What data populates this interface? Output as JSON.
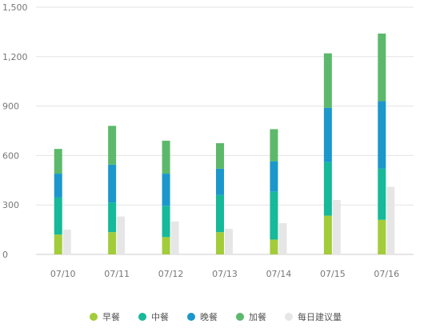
{
  "chart_data": {
    "type": "bar",
    "stacked": true,
    "categories": [
      "07/10",
      "07/11",
      "07/12",
      "07/13",
      "07/14",
      "07/15",
      "07/16"
    ],
    "series": [
      {
        "name": "早餐",
        "color": "#a2cc3a",
        "stack": "meals",
        "values": [
          120,
          135,
          105,
          135,
          90,
          235,
          210
        ]
      },
      {
        "name": "中餐",
        "color": "#16b99a",
        "stack": "meals",
        "values": [
          225,
          180,
          190,
          225,
          290,
          325,
          310
        ]
      },
      {
        "name": "晚餐",
        "color": "#1b97cc",
        "stack": "meals",
        "values": [
          145,
          230,
          195,
          160,
          185,
          330,
          410
        ]
      },
      {
        "name": "加餐",
        "color": "#5cb96b",
        "stack": "meals",
        "values": [
          150,
          235,
          200,
          155,
          195,
          330,
          410
        ]
      },
      {
        "name": "每日建议量",
        "color": "#e6e6e6",
        "stack": "suggested",
        "values": [
          150,
          230,
          200,
          155,
          190,
          330,
          410
        ]
      }
    ],
    "ylim": [
      0,
      1500
    ],
    "yticks": [
      0,
      300,
      600,
      900,
      1200,
      1500
    ],
    "ytick_labels": [
      "0",
      "300",
      "600",
      "900",
      "1,200",
      "1,500"
    ],
    "grid": true,
    "legend_position": "bottom"
  }
}
